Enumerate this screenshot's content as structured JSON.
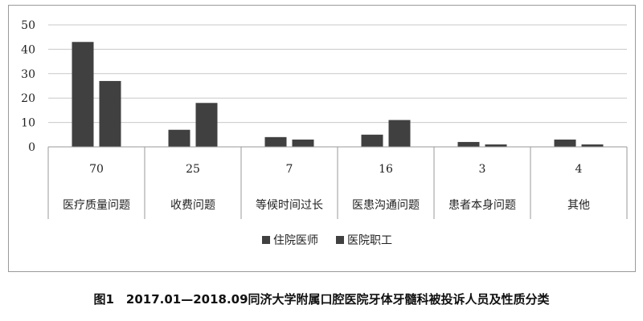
{
  "chart_data": {
    "type": "bar",
    "categories": [
      "医疗质量问题",
      "收费问题",
      "等候时间过长",
      "医患沟通问题",
      "患者本身问题",
      "其他"
    ],
    "totals": [
      "70",
      "25",
      "7",
      "16",
      "3",
      "4"
    ],
    "series": [
      {
        "name": "住院医师",
        "values": [
          43,
          7,
          4,
          5,
          2,
          3
        ],
        "color": "#404040"
      },
      {
        "name": "医院职工",
        "values": [
          27,
          18,
          3,
          11,
          1,
          1
        ],
        "color": "#404040"
      }
    ],
    "yticks": [
      "0",
      "10",
      "20",
      "30",
      "40",
      "50"
    ],
    "ylim": [
      0,
      50
    ],
    "grid": true,
    "legend_position": "bottom"
  },
  "caption": "图1　2017.01—2018.09同济大学附属口腔医院牙体牙髓科被投诉人员及性质分类"
}
